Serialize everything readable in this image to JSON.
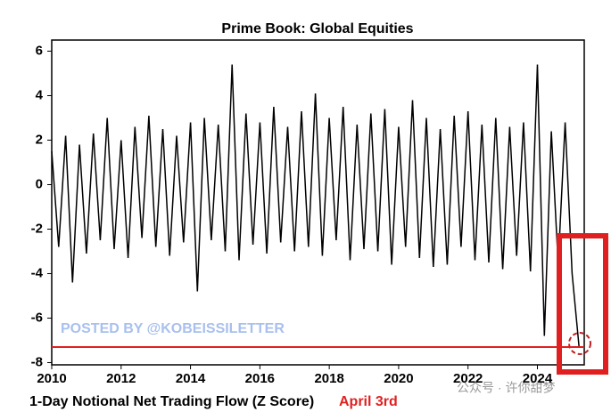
{
  "chart_data": {
    "type": "line",
    "title": "Prime Book: Global Equities",
    "caption": "1-Day Notional Net Trading Flow (Z Score)",
    "annotation": "April 3rd",
    "watermark": "POSTED BY @KOBEISSILETTER",
    "watermark_2": "公众号 · 许你甜梦",
    "reference_line": {
      "value": -7.3,
      "color": "#e02020"
    },
    "x": [
      2010.0,
      2010.2,
      2010.4,
      2010.6,
      2010.8,
      2011.0,
      2011.2,
      2011.4,
      2011.6,
      2011.8,
      2012.0,
      2012.2,
      2012.4,
      2012.6,
      2012.8,
      2013.0,
      2013.2,
      2013.4,
      2013.6,
      2013.8,
      2014.0,
      2014.2,
      2014.4,
      2014.6,
      2014.8,
      2015.0,
      2015.2,
      2015.4,
      2015.6,
      2015.8,
      2016.0,
      2016.2,
      2016.4,
      2016.6,
      2016.8,
      2017.0,
      2017.2,
      2017.4,
      2017.6,
      2017.8,
      2018.0,
      2018.2,
      2018.4,
      2018.6,
      2018.8,
      2019.0,
      2019.2,
      2019.4,
      2019.6,
      2019.8,
      2020.0,
      2020.2,
      2020.4,
      2020.6,
      2020.8,
      2021.0,
      2021.2,
      2021.4,
      2021.6,
      2021.8,
      2022.0,
      2022.2,
      2022.4,
      2022.6,
      2022.8,
      2023.0,
      2023.2,
      2023.4,
      2023.6,
      2023.8,
      2024.0,
      2024.2,
      2024.4,
      2024.6,
      2024.8,
      2025.0,
      2025.2
    ],
    "series": [
      {
        "name": "Z Score",
        "color": "#000000",
        "values": [
          1.5,
          -2.8,
          2.2,
          -4.4,
          1.8,
          -3.1,
          2.3,
          -2.5,
          3.0,
          -2.9,
          2.0,
          -3.3,
          2.6,
          -2.4,
          3.1,
          -2.8,
          2.5,
          -3.2,
          2.2,
          -2.6,
          2.8,
          -4.8,
          3.0,
          -2.5,
          2.7,
          -3.0,
          5.4,
          -3.4,
          3.2,
          -2.7,
          2.8,
          -3.1,
          3.5,
          -2.6,
          2.6,
          -3.0,
          3.3,
          -2.8,
          4.1,
          -3.2,
          3.0,
          -2.5,
          3.5,
          -3.4,
          2.7,
          -2.9,
          3.2,
          -3.0,
          3.4,
          -3.6,
          2.6,
          -2.8,
          3.8,
          -3.3,
          3.0,
          -3.7,
          2.5,
          -3.6,
          3.1,
          -2.8,
          3.3,
          -3.4,
          2.7,
          -3.5,
          3.0,
          -3.8,
          2.6,
          -3.2,
          2.8,
          -3.9,
          5.4,
          -6.8,
          2.4,
          -3.6,
          2.8,
          -4.0,
          -7.3
        ]
      }
    ],
    "xlim": [
      2010,
      2025.35
    ],
    "xticks": [
      2010,
      2012,
      2014,
      2016,
      2018,
      2020,
      2022,
      2024
    ],
    "ylim": [
      -8.1,
      6.5
    ],
    "yticks": [
      -8,
      -6,
      -4,
      -2,
      0,
      2,
      4,
      6
    ],
    "grid": false
  }
}
